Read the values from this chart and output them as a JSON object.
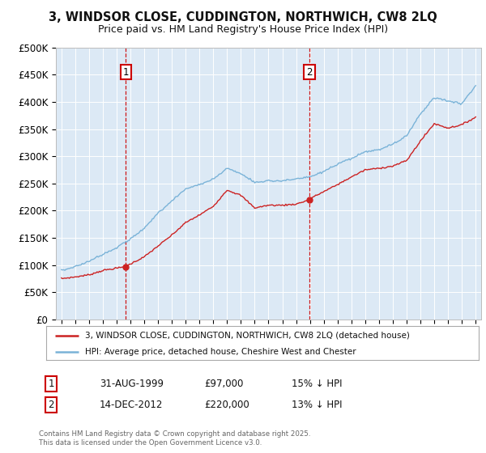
{
  "title": "3, WINDSOR CLOSE, CUDDINGTON, NORTHWICH, CW8 2LQ",
  "subtitle": "Price paid vs. HM Land Registry's House Price Index (HPI)",
  "background_color": "#ffffff",
  "plot_bg_color": "#dce9f5",
  "red_line_label": "3, WINDSOR CLOSE, CUDDINGTON, NORTHWICH, CW8 2LQ (detached house)",
  "blue_line_label": "HPI: Average price, detached house, Cheshire West and Chester",
  "ann1_num": "1",
  "ann1_date": "31-AUG-1999",
  "ann1_price": "£97,000",
  "ann1_pct": "15% ↓ HPI",
  "ann2_num": "2",
  "ann2_date": "14-DEC-2012",
  "ann2_price": "£220,000",
  "ann2_pct": "13% ↓ HPI",
  "footer_line1": "Contains HM Land Registry data © Crown copyright and database right 2025.",
  "footer_line2": "This data is licensed under the Open Government Licence v3.0.",
  "ylim": [
    0,
    500000
  ],
  "ytick_vals": [
    0,
    50000,
    100000,
    150000,
    200000,
    250000,
    300000,
    350000,
    400000,
    450000,
    500000
  ],
  "ytick_labels": [
    "£0",
    "£50K",
    "£100K",
    "£150K",
    "£200K",
    "£250K",
    "£300K",
    "£350K",
    "£400K",
    "£450K",
    "£500K"
  ],
  "year_start": 1995,
  "year_end": 2025,
  "sale1_year": 1999.667,
  "sale1_price": 97000,
  "sale2_year": 2012.958,
  "sale2_price": 220000,
  "red_color": "#cc2222",
  "blue_color": "#7ab3d8",
  "vline_color": "#cc0000",
  "grid_color": "#ffffff",
  "ann_box_color": "#cc0000",
  "blue_control_years": [
    1995,
    1996,
    1997,
    1998,
    1999,
    2000,
    2001,
    2002,
    2003,
    2004,
    2005,
    2006,
    2007,
    2008,
    2009,
    2010,
    2011,
    2012,
    2013,
    2014,
    2015,
    2016,
    2017,
    2018,
    2019,
    2020,
    2021,
    2022,
    2023,
    2024,
    2025
  ],
  "blue_control_vals": [
    90000,
    97000,
    107000,
    120000,
    132000,
    148000,
    167000,
    196000,
    218000,
    240000,
    248000,
    258000,
    278000,
    268000,
    252000,
    255000,
    255000,
    258000,
    262000,
    272000,
    285000,
    296000,
    308000,
    312000,
    322000,
    338000,
    378000,
    408000,
    402000,
    397000,
    430000
  ],
  "red_control_years": [
    1995,
    1996,
    1997,
    1998,
    1999.667,
    2000,
    2001,
    2002,
    2003,
    2004,
    2005,
    2006,
    2007,
    2008,
    2009,
    2010,
    2011,
    2012,
    2012.958,
    2013,
    2014,
    2015,
    2016,
    2017,
    2018,
    2019,
    2020,
    2021,
    2022,
    2023,
    2024,
    2025
  ],
  "red_control_vals": [
    75000,
    78000,
    82000,
    90000,
    97000,
    102000,
    115000,
    135000,
    155000,
    178000,
    192000,
    208000,
    238000,
    228000,
    205000,
    210000,
    210000,
    212000,
    220000,
    222000,
    235000,
    248000,
    262000,
    275000,
    278000,
    282000,
    292000,
    328000,
    360000,
    352000,
    358000,
    372000
  ]
}
